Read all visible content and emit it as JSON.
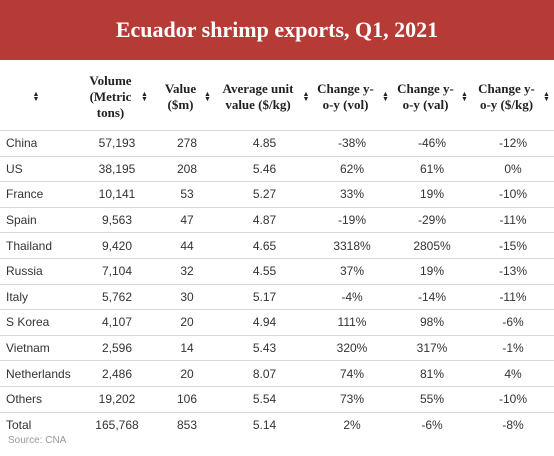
{
  "title": "Ecuador shrimp exports, Q1, 2021",
  "source": "Source: CNA",
  "sort_icon": "sort-arrows-icon",
  "columns": [
    {
      "key": "country",
      "label": ""
    },
    {
      "key": "volume",
      "label": "Volume (Metric tons)"
    },
    {
      "key": "value",
      "label": "Value ($m)"
    },
    {
      "key": "unit_value",
      "label": "Average unit value ($/kg)"
    },
    {
      "key": "change_vol",
      "label": "Change y-o-y (vol)"
    },
    {
      "key": "change_val",
      "label": "Change y-o-y (val)"
    },
    {
      "key": "change_unit",
      "label": "Change y-o-y ($/kg)"
    }
  ],
  "chart_data": {
    "type": "table",
    "title": "Ecuador shrimp exports, Q1, 2021",
    "columns": [
      "",
      "Volume (Metric tons)",
      "Value ($m)",
      "Average unit value ($/kg)",
      "Change y-o-y (vol)",
      "Change y-o-y (val)",
      "Change y-o-y ($/kg)"
    ],
    "rows": [
      [
        "China",
        "57,193",
        "278",
        "4.85",
        "-38%",
        "-46%",
        "-12%"
      ],
      [
        "US",
        "38,195",
        "208",
        "5.46",
        "62%",
        "61%",
        "0%"
      ],
      [
        "France",
        "10,141",
        "53",
        "5.27",
        "33%",
        "19%",
        "-10%"
      ],
      [
        "Spain",
        "9,563",
        "47",
        "4.87",
        "-19%",
        "-29%",
        "-11%"
      ],
      [
        "Thailand",
        "9,420",
        "44",
        "4.65",
        "3318%",
        "2805%",
        "-15%"
      ],
      [
        "Russia",
        "7,104",
        "32",
        "4.55",
        "37%",
        "19%",
        "-13%"
      ],
      [
        "Italy",
        "5,762",
        "30",
        "5.17",
        "-4%",
        "-14%",
        "-11%"
      ],
      [
        "S Korea",
        "4,107",
        "20",
        "4.94",
        "111%",
        "98%",
        "-6%"
      ],
      [
        "Vietnam",
        "2,596",
        "14",
        "5.43",
        "320%",
        "317%",
        "-1%"
      ],
      [
        "Netherlands",
        "2,486",
        "20",
        "8.07",
        "74%",
        "81%",
        "4%"
      ],
      [
        "Others",
        "19,202",
        "106",
        "5.54",
        "73%",
        "55%",
        "-10%"
      ],
      [
        "Total",
        "165,768",
        "853",
        "5.14",
        "2%",
        "-6%",
        "-8%"
      ]
    ]
  }
}
